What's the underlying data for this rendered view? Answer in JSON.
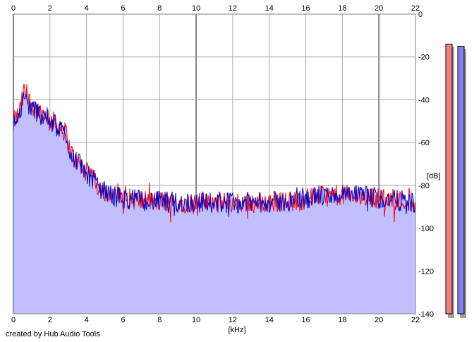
{
  "credit": "created by Hub Audio Tools",
  "chart_data": {
    "type": "area",
    "xlabel": "[kHz]",
    "ylabel": "[dB]",
    "xlim": [
      0,
      22
    ],
    "ylim": [
      -140,
      0
    ],
    "x_ticks": [
      "0",
      "2",
      "4",
      "6",
      "8",
      "10",
      "12",
      "14",
      "16",
      "18",
      "20",
      "22"
    ],
    "y_ticks": [
      "0",
      "-20",
      "-40",
      "-60",
      "-80",
      "-100",
      "-120",
      "-140"
    ],
    "grid": true,
    "series": [
      {
        "channel": "red",
        "color": "#ff0000",
        "envelope": {
          "x": [
            0,
            0.3,
            0.5,
            0.6,
            0.8,
            1.0,
            1.2,
            1.5,
            1.8,
            2.0,
            2.3,
            2.6,
            2.9,
            3.1,
            3.4,
            3.8,
            4.2,
            4.6,
            5.0,
            5.5,
            6.0,
            7.0,
            8.0,
            9.0,
            10.0,
            11.0,
            12.0,
            13.0,
            14.0,
            15.0,
            16.0,
            16.5,
            17.0,
            18.0,
            19.0,
            20.0,
            21.0,
            22.0
          ],
          "y": [
            -50,
            -47,
            -40,
            -35,
            -40,
            -42,
            -44,
            -46,
            -47,
            -49,
            -51,
            -53,
            -56,
            -64,
            -68,
            -72,
            -76,
            -80,
            -83,
            -85,
            -86,
            -87,
            -87.5,
            -88,
            -88,
            -88,
            -88,
            -88,
            -88,
            -87.5,
            -86.5,
            -85,
            -85,
            -84.5,
            -85,
            -86,
            -87,
            -88
          ]
        },
        "spread_db": 5
      },
      {
        "channel": "blue",
        "color": "#0000c8",
        "envelope": {
          "x": [
            0,
            0.3,
            0.5,
            0.6,
            0.8,
            1.0,
            1.2,
            1.5,
            1.8,
            2.0,
            2.3,
            2.6,
            2.9,
            3.1,
            3.4,
            3.8,
            4.2,
            4.6,
            5.0,
            5.5,
            6.0,
            7.0,
            8.0,
            9.0,
            10.0,
            11.0,
            12.0,
            13.0,
            14.0,
            15.0,
            16.0,
            16.5,
            17.0,
            18.0,
            19.0,
            20.0,
            21.0,
            22.0
          ],
          "y": [
            -51,
            -48,
            -42,
            -39,
            -42,
            -44,
            -45,
            -47,
            -48,
            -50,
            -52,
            -54,
            -57,
            -64,
            -68,
            -72,
            -76,
            -80,
            -83,
            -85,
            -86,
            -87,
            -87.5,
            -88,
            -88,
            -88,
            -88,
            -88,
            -88,
            -87.5,
            -86.5,
            -85,
            -85,
            -84.5,
            -85,
            -86,
            -87,
            -88
          ]
        },
        "spread_db": 5
      }
    ],
    "area_fill": "#c0c0ff",
    "level_meters": [
      {
        "channel": "left",
        "color": "#f08080",
        "value_db": -14
      },
      {
        "channel": "right",
        "color": "#8080f0",
        "value_db": -15
      }
    ]
  }
}
